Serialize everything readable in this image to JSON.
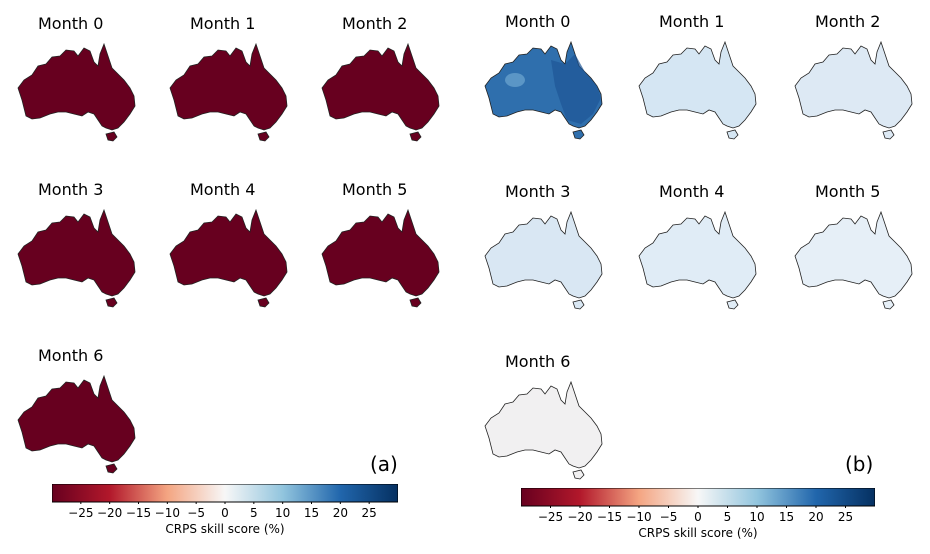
{
  "colorbar": {
    "label": "CRPS skill score (%)",
    "ticks": [
      "−25",
      "−20",
      "−15",
      "−10",
      "−5",
      "0",
      "5",
      "10",
      "15",
      "20",
      "25"
    ],
    "range": [
      -30,
      30
    ],
    "colors": {
      "dark_red": "#67001f",
      "red": "#b2182b",
      "salmon": "#f4a582",
      "white": "#f7f7f7",
      "light_blue": "#92c5de",
      "blue": "#2166ac",
      "dark_blue": "#053061"
    }
  },
  "panels": [
    {
      "letter": "(a)",
      "maps": [
        {
          "label": "Month 0",
          "fill": "#67001f"
        },
        {
          "label": "Month 1",
          "fill": "#67001f"
        },
        {
          "label": "Month 2",
          "fill": "#67001f"
        },
        {
          "label": "Month 3",
          "fill": "#67001f"
        },
        {
          "label": "Month 4",
          "fill": "#67001f"
        },
        {
          "label": "Month 5",
          "fill": "#67001f"
        },
        {
          "label": "Month 6",
          "fill": "#67001f"
        }
      ]
    },
    {
      "letter": "(b)",
      "maps": [
        {
          "label": "Month 0",
          "fill": "#2f6fad"
        },
        {
          "label": "Month 1",
          "fill": "#d5e6f3"
        },
        {
          "label": "Month 2",
          "fill": "#dde9f4"
        },
        {
          "label": "Month 3",
          "fill": "#d9e7f3"
        },
        {
          "label": "Month 4",
          "fill": "#e0ecf6"
        },
        {
          "label": "Month 5",
          "fill": "#e6eff7"
        },
        {
          "label": "Month 6",
          "fill": "#f1f0f1"
        }
      ]
    }
  ]
}
